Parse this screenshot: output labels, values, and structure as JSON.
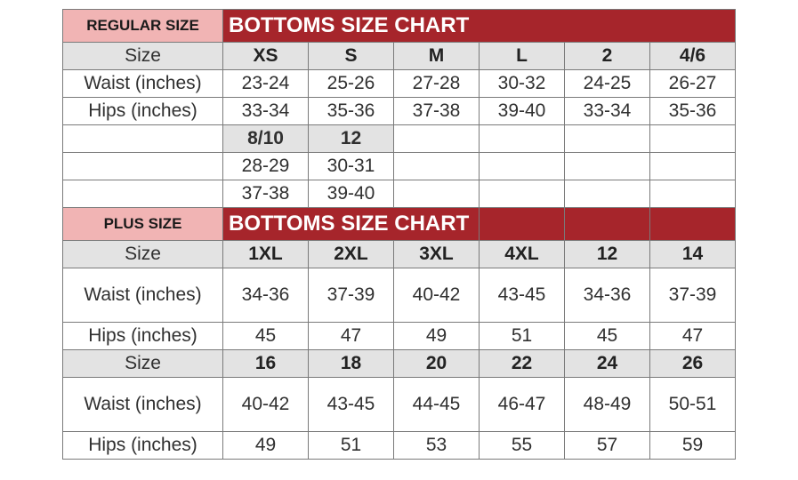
{
  "regular": {
    "badge": "REGULAR SIZE",
    "title": "BOTTOMS SIZE CHART",
    "size_label": "Size",
    "waist_label": "Waist (inches)",
    "hips_label": "Hips (inches)",
    "sizes": [
      "XS",
      "S",
      "M",
      "L",
      "2",
      "4/6"
    ],
    "waist": [
      "23-24",
      "25-26",
      "27-28",
      "30-32",
      "24-25",
      "26-27"
    ],
    "hips": [
      "33-34",
      "35-36",
      "37-38",
      "39-40",
      "33-34",
      "35-36"
    ],
    "extra_sizes": [
      "8/10",
      "12"
    ],
    "extra_waist": [
      "28-29",
      "30-31"
    ],
    "extra_hips": [
      "37-38",
      "39-40"
    ]
  },
  "plus": {
    "badge": "PLUS SIZE",
    "title": "BOTTOMS SIZE CHART",
    "size_label": "Size",
    "waist_label": "Waist (inches)",
    "hips_label": "Hips (inches)",
    "sizes_a": [
      "1XL",
      "2XL",
      "3XL",
      "4XL",
      "12",
      "14"
    ],
    "waist_a": [
      "34-36",
      "37-39",
      "40-42",
      "43-45",
      "34-36",
      "37-39"
    ],
    "hips_a": [
      "45",
      "47",
      "49",
      "51",
      "45",
      "47"
    ],
    "sizes_b": [
      "16",
      "18",
      "20",
      "22",
      "24",
      "26"
    ],
    "waist_b": [
      "40-42",
      "43-45",
      "44-45",
      "46-47",
      "48-49",
      "50-51"
    ],
    "hips_b": [
      "49",
      "51",
      "53",
      "55",
      "57",
      "59"
    ]
  },
  "colors": {
    "banner": "#a6252b",
    "badge": "#f1b4b4",
    "header_gray": "#e3e3e3"
  }
}
